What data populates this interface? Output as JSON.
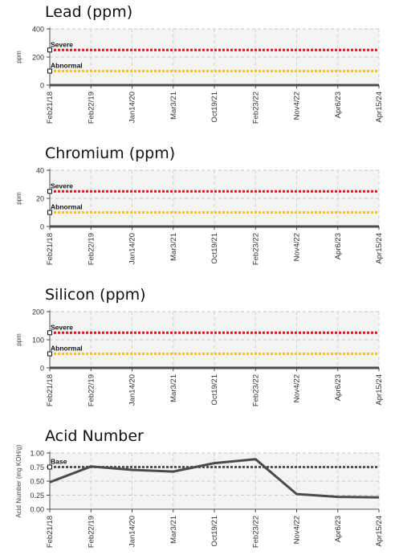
{
  "chart_data": [
    {
      "type": "line",
      "title": "Lead (ppm)",
      "ylabel": "ppm",
      "ylim": [
        0,
        400
      ],
      "yticks": [
        "0",
        "200",
        "400"
      ],
      "x": [
        "Feb21/18",
        "Feb22/19",
        "Jan14/20",
        "Mar3/21",
        "Oct19/21",
        "Feb23/22",
        "Nov4/22",
        "Apr6/23",
        "Apr15/24"
      ],
      "series": [
        {
          "values": [
            0,
            0,
            0,
            0,
            0,
            0,
            0,
            0,
            0
          ]
        }
      ],
      "thresholds": [
        {
          "label": "Severe",
          "value": 250,
          "color": "#e8141c"
        },
        {
          "label": "Abnormal",
          "value": 100,
          "color": "#f7c600"
        }
      ],
      "grid": true
    },
    {
      "type": "line",
      "title": "Chromium (ppm)",
      "ylabel": "ppm",
      "ylim": [
        0,
        40
      ],
      "yticks": [
        "0",
        "20",
        "40"
      ],
      "x": [
        "Feb21/18",
        "Feb22/19",
        "Jan14/20",
        "Mar3/21",
        "Oct19/21",
        "Feb23/22",
        "Nov4/22",
        "Apr6/23",
        "Apr15/24"
      ],
      "series": [
        {
          "values": [
            0,
            0,
            0,
            0,
            0,
            0,
            0,
            0,
            0
          ]
        }
      ],
      "thresholds": [
        {
          "label": "Severe",
          "value": 25,
          "color": "#e8141c"
        },
        {
          "label": "Abnormal",
          "value": 10,
          "color": "#f7c600"
        }
      ],
      "grid": true
    },
    {
      "type": "line",
      "title": "Silicon (ppm)",
      "ylabel": "ppm",
      "ylim": [
        0,
        200
      ],
      "yticks": [
        "0",
        "100",
        "200"
      ],
      "x": [
        "Feb21/18",
        "Feb22/19",
        "Jan14/20",
        "Mar3/21",
        "Oct19/21",
        "Feb23/22",
        "Nov4/22",
        "Apr6/23",
        "Apr15/24"
      ],
      "series": [
        {
          "values": [
            0,
            0,
            0,
            0,
            0,
            0,
            0,
            0,
            0
          ]
        }
      ],
      "thresholds": [
        {
          "label": "Severe",
          "value": 125,
          "color": "#e8141c"
        },
        {
          "label": "Abnormal",
          "value": 50,
          "color": "#f7c600"
        }
      ],
      "grid": true
    },
    {
      "type": "line",
      "title": "Acid Number",
      "ylabel": "Acid Number (mg KOH/g)",
      "ylim": [
        0,
        1.0
      ],
      "yticks": [
        "0.00",
        "0.25",
        "0.50",
        "0.75",
        "1.00"
      ],
      "x": [
        "Feb21/18",
        "Feb22/19",
        "Jan14/20",
        "Mar3/21",
        "Oct19/21",
        "Feb23/22",
        "Nov4/22",
        "Apr6/23",
        "Apr15/24"
      ],
      "series": [
        {
          "values": [
            0.48,
            0.76,
            0.7,
            0.67,
            0.82,
            0.89,
            0.27,
            0.22,
            0.21
          ]
        }
      ],
      "thresholds": [
        {
          "label": "Base",
          "value": 0.75,
          "color": "#555555"
        }
      ],
      "grid": true
    }
  ]
}
